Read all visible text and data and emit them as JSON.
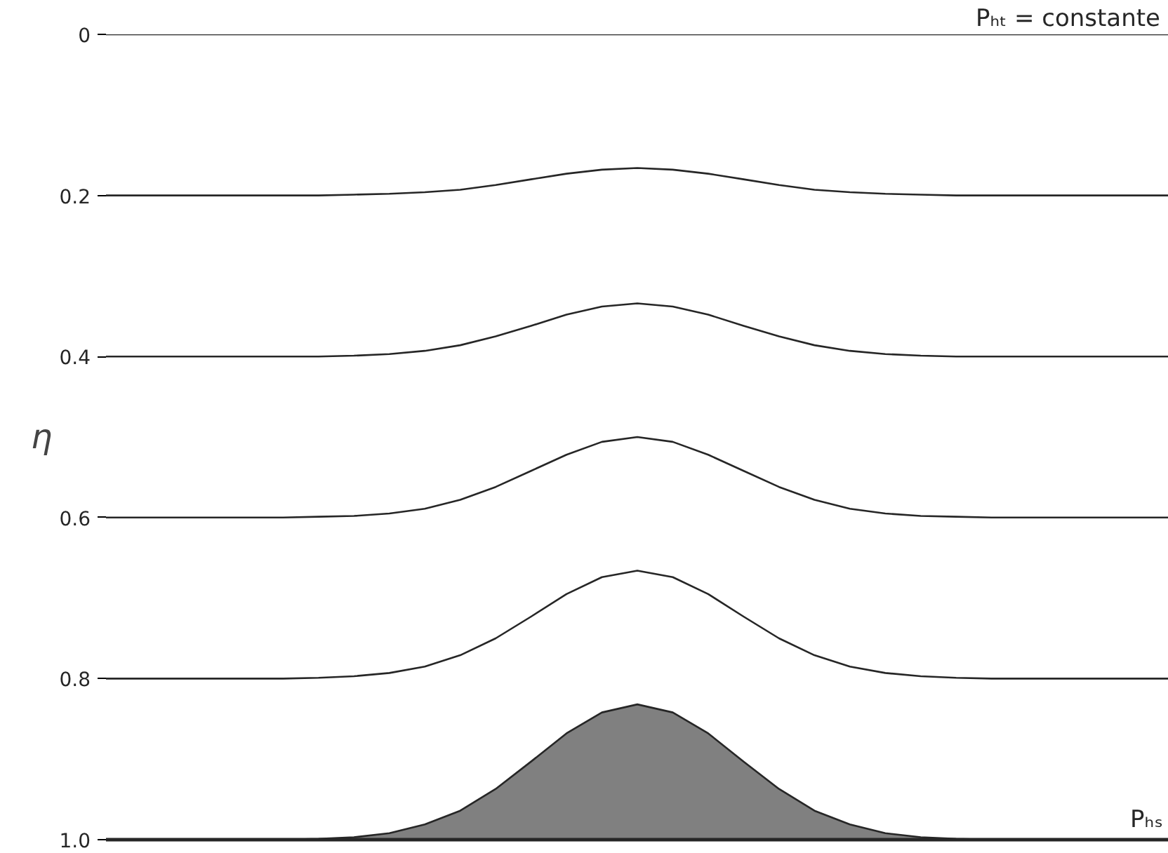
{
  "chart_data": {
    "type": "line",
    "categories": [
      null,
      null,
      null,
      null,
      null,
      null,
      null,
      null,
      null,
      null,
      null,
      null,
      null,
      null,
      null,
      null,
      null,
      null,
      null,
      null,
      null,
      null,
      null,
      null,
      null,
      null,
      null,
      null,
      null,
      null,
      null
    ],
    "series": [
      {
        "color": "#262626",
        "values": [
          0,
          0,
          0,
          0,
          0,
          0,
          0,
          0,
          0,
          0,
          0,
          0,
          0,
          0,
          0,
          0,
          0,
          0,
          0,
          0,
          0,
          0,
          0,
          0,
          0,
          0,
          0,
          0,
          0,
          0,
          0
        ]
      },
      {
        "color": "#262626",
        "values": [
          0.2,
          0.2,
          0.2,
          0.2,
          0.2,
          0.2,
          0.2,
          0.199,
          0.198,
          0.196,
          0.193,
          0.187,
          0.18,
          0.173,
          0.168,
          0.166,
          0.168,
          0.173,
          0.18,
          0.187,
          0.193,
          0.196,
          0.198,
          0.199,
          0.2,
          0.2,
          0.2,
          0.2,
          0.2,
          0.2,
          0.2
        ]
      },
      {
        "color": "#262626",
        "values": [
          0.4,
          0.4,
          0.4,
          0.4,
          0.4,
          0.4,
          0.4,
          0.399,
          0.397,
          0.393,
          0.386,
          0.375,
          0.362,
          0.348,
          0.338,
          0.334,
          0.338,
          0.348,
          0.362,
          0.375,
          0.386,
          0.393,
          0.397,
          0.399,
          0.4,
          0.4,
          0.4,
          0.4,
          0.4,
          0.4,
          0.4
        ]
      },
      {
        "color": "#262626",
        "values": [
          0.6,
          0.6,
          0.6,
          0.6,
          0.6,
          0.6,
          0.599,
          0.598,
          0.595,
          0.589,
          0.578,
          0.562,
          0.542,
          0.522,
          0.506,
          0.5,
          0.506,
          0.522,
          0.542,
          0.562,
          0.578,
          0.589,
          0.595,
          0.598,
          0.599,
          0.6,
          0.6,
          0.6,
          0.6,
          0.6,
          0.6
        ]
      },
      {
        "color": "#262626",
        "values": [
          0.8,
          0.8,
          0.8,
          0.8,
          0.8,
          0.8,
          0.799,
          0.797,
          0.793,
          0.785,
          0.771,
          0.75,
          0.723,
          0.695,
          0.674,
          0.666,
          0.674,
          0.695,
          0.723,
          0.75,
          0.771,
          0.785,
          0.793,
          0.797,
          0.799,
          0.8,
          0.8,
          0.8,
          0.8,
          0.8,
          0.8
        ]
      },
      {
        "type": "area",
        "color": "#808080",
        "values": [
          1.0,
          1.0,
          1.0,
          1.0,
          1.0,
          1.0,
          0.999,
          0.997,
          0.992,
          0.981,
          0.964,
          0.937,
          0.903,
          0.868,
          0.842,
          0.832,
          0.842,
          0.868,
          0.903,
          0.937,
          0.964,
          0.981,
          0.992,
          0.997,
          0.999,
          1.0,
          1.0,
          1.0,
          1.0,
          1.0,
          1.0
        ]
      }
    ],
    "ylabel": "η",
    "ylim": [
      1,
      0
    ],
    "yticks": [
      0,
      0.2,
      0.4,
      0.6,
      0.8,
      {
        "value": 1,
        "label": "1.0"
      }
    ],
    "tick_labels": "y",
    "grid": false,
    "annotations": [
      "Pₕₜ = constante",
      "Pₕₛ"
    ]
  }
}
